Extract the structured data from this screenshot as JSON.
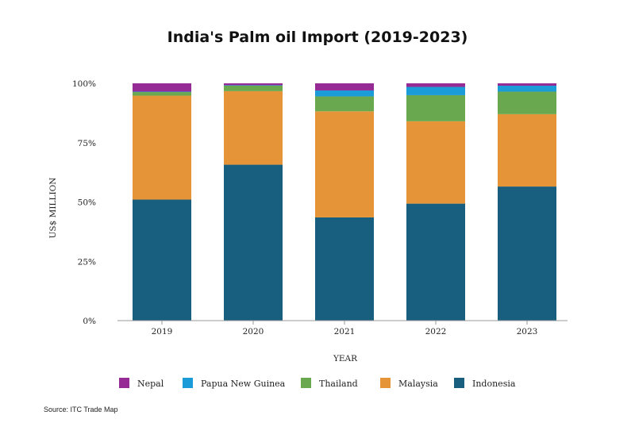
{
  "title": "India's Palm oil Import (2019-2023)",
  "source": "Source: ITC Trade Map",
  "chart_data": {
    "type": "bar",
    "stacked": true,
    "percent": true,
    "title": "India's Palm oil Import (2019-2023)",
    "xlabel": "YEAR",
    "ylabel": "US$ MILLION",
    "categories": [
      "2019",
      "2020",
      "2021",
      "2022",
      "2023"
    ],
    "yticks": [
      "0%",
      "25%",
      "50%",
      "75%",
      "100%"
    ],
    "ylim": [
      0,
      100
    ],
    "legend_position": "bottom",
    "series": [
      {
        "name": "Indonesia",
        "color": "#175e7f",
        "values": [
          51,
          65.7,
          43.5,
          49.3,
          56.5
        ]
      },
      {
        "name": "Malaysia",
        "color": "#e59437",
        "values": [
          43.8,
          31,
          44.7,
          34.7,
          30.5
        ]
      },
      {
        "name": "Thailand",
        "color": "#6aa84f",
        "values": [
          1.5,
          2.3,
          6.3,
          11,
          9.5
        ]
      },
      {
        "name": "Papua New Guinea",
        "color": "#1b9bd7",
        "values": [
          0.2,
          0.2,
          2.5,
          3.5,
          2.5
        ]
      },
      {
        "name": "Nepal",
        "color": "#962b95",
        "values": [
          3.5,
          0.8,
          3,
          1.5,
          1
        ]
      }
    ],
    "legend_order": [
      "Nepal",
      "Papua New Guinea",
      "Thailand",
      "Malaysia",
      "Indonesia"
    ]
  }
}
